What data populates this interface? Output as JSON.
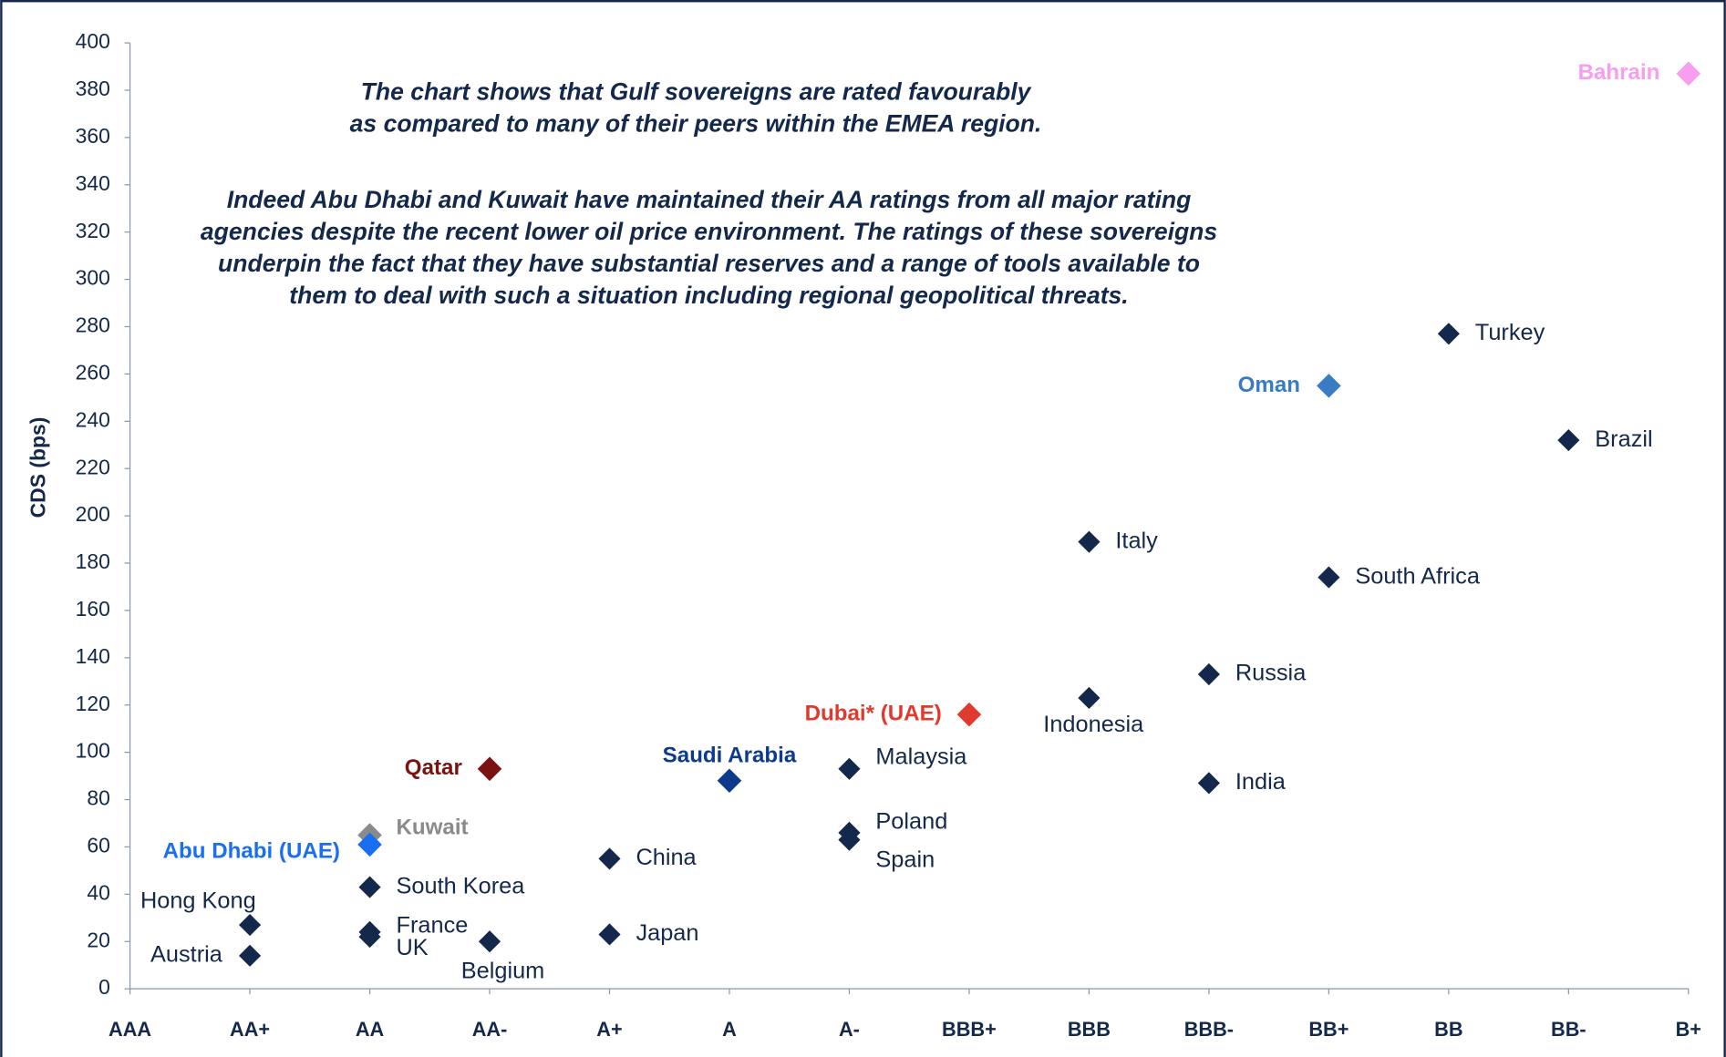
{
  "chart_data": {
    "type": "scatter",
    "y_label": "CDS (bps)",
    "annotations": [
      [
        "The chart shows that Gulf sovereigns are rated favourably",
        "as compared to many of their peers within the EMEA region."
      ],
      [
        "Indeed Abu Dhabi and Kuwait have maintained their AA ratings from all major rating",
        "agencies despite the recent lower oil price environment. The ratings of these sovereigns",
        "underpin the fact that they have substantial reserves and a range of tools available to",
        "them to deal with such a situation including regional geopolitical threats."
      ]
    ],
    "categories": [
      "AAA",
      "AA+",
      "AA",
      "AA-",
      "A+",
      "A",
      "A-",
      "BBB+",
      "BBB",
      "BBB-",
      "BB+",
      "BB",
      "BB-",
      "B+"
    ],
    "ylim": [
      0,
      400
    ],
    "yticks": [
      0,
      20,
      40,
      60,
      80,
      100,
      120,
      140,
      160,
      180,
      200,
      220,
      240,
      260,
      280,
      300,
      320,
      340,
      360,
      380,
      400
    ],
    "color": "#13284a",
    "points": [
      {
        "name": "Bahrain",
        "x": "B+",
        "y": 387,
        "color": "#f79ef0"
      },
      {
        "name": "Turkey",
        "x": "BB",
        "y": 277,
        "color": "#13284a"
      },
      {
        "name": "Oman",
        "x": "BB+",
        "y": 255,
        "color": "#3a7cc4"
      },
      {
        "name": "Brazil",
        "x": "BB-",
        "y": 232,
        "color": "#13284a"
      },
      {
        "name": "Italy",
        "x": "BBB",
        "y": 189,
        "color": "#13284a"
      },
      {
        "name": "South Africa",
        "x": "BB+",
        "y": 174,
        "color": "#13284a"
      },
      {
        "name": "Russia",
        "x": "BBB-",
        "y": 133,
        "color": "#13284a"
      },
      {
        "name": "Indonesia",
        "x": "BBB",
        "y": 123,
        "color": "#13284a"
      },
      {
        "name": "Dubai* (UAE)",
        "x": "BBB+",
        "y": 116,
        "color": "#e03a2f"
      },
      {
        "name": "India",
        "x": "BBB-",
        "y": 87,
        "color": "#13284a"
      },
      {
        "name": "Malaysia",
        "x": "A-",
        "y": 93,
        "color": "#13284a"
      },
      {
        "name": "Qatar",
        "x": "AA-",
        "y": 93,
        "color": "#7a1212"
      },
      {
        "name": "Saudi Arabia",
        "x": "A",
        "y": 88,
        "color": "#0d3a8a"
      },
      {
        "name": "Kuwait",
        "x": "AA",
        "y": 65,
        "color": "#8a8a8a"
      },
      {
        "name": "Abu Dhabi (UAE)",
        "x": "AA",
        "y": 61,
        "color": "#1a6ef0"
      },
      {
        "name": "Poland",
        "x": "A-",
        "y": 66,
        "color": "#13284a"
      },
      {
        "name": "Spain",
        "x": "A-",
        "y": 63,
        "color": "#13284a"
      },
      {
        "name": "China",
        "x": "A+",
        "y": 55,
        "color": "#13284a"
      },
      {
        "name": "South Korea",
        "x": "AA",
        "y": 43,
        "color": "#13284a"
      },
      {
        "name": "Hong Kong",
        "x": "AA+",
        "y": 27,
        "color": "#13284a"
      },
      {
        "name": "France",
        "x": "AA",
        "y": 24,
        "color": "#13284a"
      },
      {
        "name": "UK",
        "x": "AA",
        "y": 22,
        "color": "#13284a"
      },
      {
        "name": "Japan",
        "x": "A+",
        "y": 23,
        "color": "#13284a"
      },
      {
        "name": "Belgium",
        "x": "AA-",
        "y": 20,
        "color": "#13284a"
      },
      {
        "name": "Austria",
        "x": "AA+",
        "y": 14,
        "color": "#13284a"
      }
    ]
  }
}
